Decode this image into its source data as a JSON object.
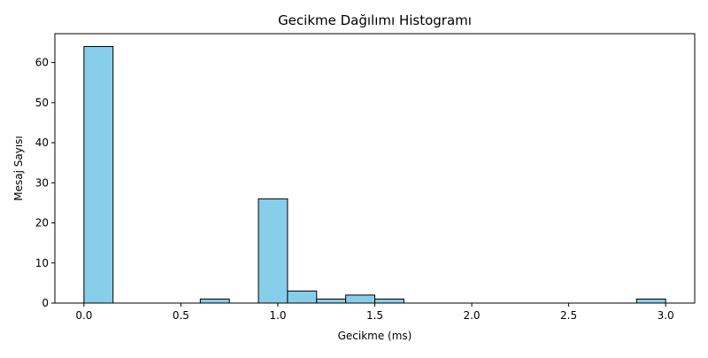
{
  "chart_data": {
    "type": "bar",
    "title": "Gecikme Dağılımı Histogramı",
    "xlabel": "Gecikme (ms)",
    "ylabel": "Mesaj Sayısı",
    "xlim": [
      -0.15,
      3.15
    ],
    "ylim": [
      0,
      67.2
    ],
    "xticks": [
      0.0,
      0.5,
      1.0,
      1.5,
      2.0,
      2.5,
      3.0
    ],
    "xtick_labels": [
      "0.0",
      "0.5",
      "1.0",
      "1.5",
      "2.0",
      "2.5",
      "3.0"
    ],
    "yticks": [
      0,
      10,
      20,
      30,
      40,
      50,
      60
    ],
    "ytick_labels": [
      "0",
      "10",
      "20",
      "30",
      "40",
      "50",
      "60"
    ],
    "bins": [
      {
        "x0": 0.0,
        "x1": 0.15,
        "count": 64
      },
      {
        "x0": 0.15,
        "x1": 0.3,
        "count": 0
      },
      {
        "x0": 0.3,
        "x1": 0.45,
        "count": 0
      },
      {
        "x0": 0.45,
        "x1": 0.6,
        "count": 0
      },
      {
        "x0": 0.6,
        "x1": 0.75,
        "count": 1
      },
      {
        "x0": 0.75,
        "x1": 0.9,
        "count": 0
      },
      {
        "x0": 0.9,
        "x1": 1.05,
        "count": 26
      },
      {
        "x0": 1.05,
        "x1": 1.2,
        "count": 3
      },
      {
        "x0": 1.2,
        "x1": 1.35,
        "count": 1
      },
      {
        "x0": 1.35,
        "x1": 1.5,
        "count": 2
      },
      {
        "x0": 1.5,
        "x1": 1.65,
        "count": 1
      },
      {
        "x0": 1.65,
        "x1": 1.8,
        "count": 0
      },
      {
        "x0": 1.8,
        "x1": 1.95,
        "count": 0
      },
      {
        "x0": 1.95,
        "x1": 2.1,
        "count": 0
      },
      {
        "x0": 2.1,
        "x1": 2.25,
        "count": 0
      },
      {
        "x0": 2.25,
        "x1": 2.4,
        "count": 0
      },
      {
        "x0": 2.4,
        "x1": 2.55,
        "count": 0
      },
      {
        "x0": 2.55,
        "x1": 2.7,
        "count": 0
      },
      {
        "x0": 2.7,
        "x1": 2.85,
        "count": 0
      },
      {
        "x0": 2.85,
        "x1": 3.0,
        "count": 1
      }
    ],
    "bar_color": "#87ceeb",
    "edge_color": "#000000",
    "grid": false,
    "legend": "none"
  }
}
